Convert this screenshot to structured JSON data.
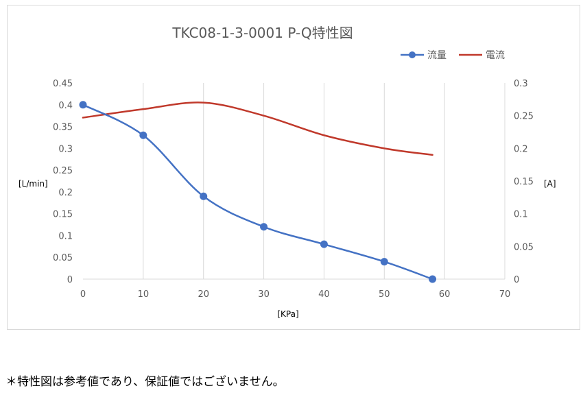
{
  "chart_data": {
    "type": "line",
    "title": "TKC08-1-3-0001 P-Q特性図",
    "xlabel": "[KPa]",
    "ylabel_left": "[L/min]",
    "ylabel_right": "[A]",
    "xlim": [
      0,
      70
    ],
    "x_ticks": [
      0,
      10,
      20,
      30,
      40,
      50,
      60,
      70
    ],
    "ylim_left": [
      0,
      0.45
    ],
    "y_ticks_left": [
      0,
      0.05,
      0.1,
      0.15,
      0.2,
      0.25,
      0.3,
      0.35,
      0.4,
      0.45
    ],
    "ylim_right": [
      0,
      0.3
    ],
    "y_ticks_right": [
      0,
      0.05,
      0.1,
      0.15,
      0.2,
      0.25,
      0.3
    ],
    "grid": "vertical",
    "legend_position": "top-right",
    "series": [
      {
        "name": "流量",
        "axis": "left",
        "color": "#4472c4",
        "markers": true,
        "smooth": true,
        "x": [
          0,
          10,
          20,
          30,
          40,
          50,
          58
        ],
        "values": [
          0.4,
          0.33,
          0.19,
          0.12,
          0.08,
          0.04,
          0
        ]
      },
      {
        "name": "電流",
        "axis": "right",
        "color": "#c0392b",
        "markers": false,
        "smooth": true,
        "x": [
          0,
          10,
          20,
          30,
          40,
          50,
          58
        ],
        "values": [
          0.247,
          0.26,
          0.27,
          0.25,
          0.22,
          0.2,
          0.19
        ]
      }
    ]
  },
  "footnote": "＊特性図は参考値であり、保証値ではございません。"
}
